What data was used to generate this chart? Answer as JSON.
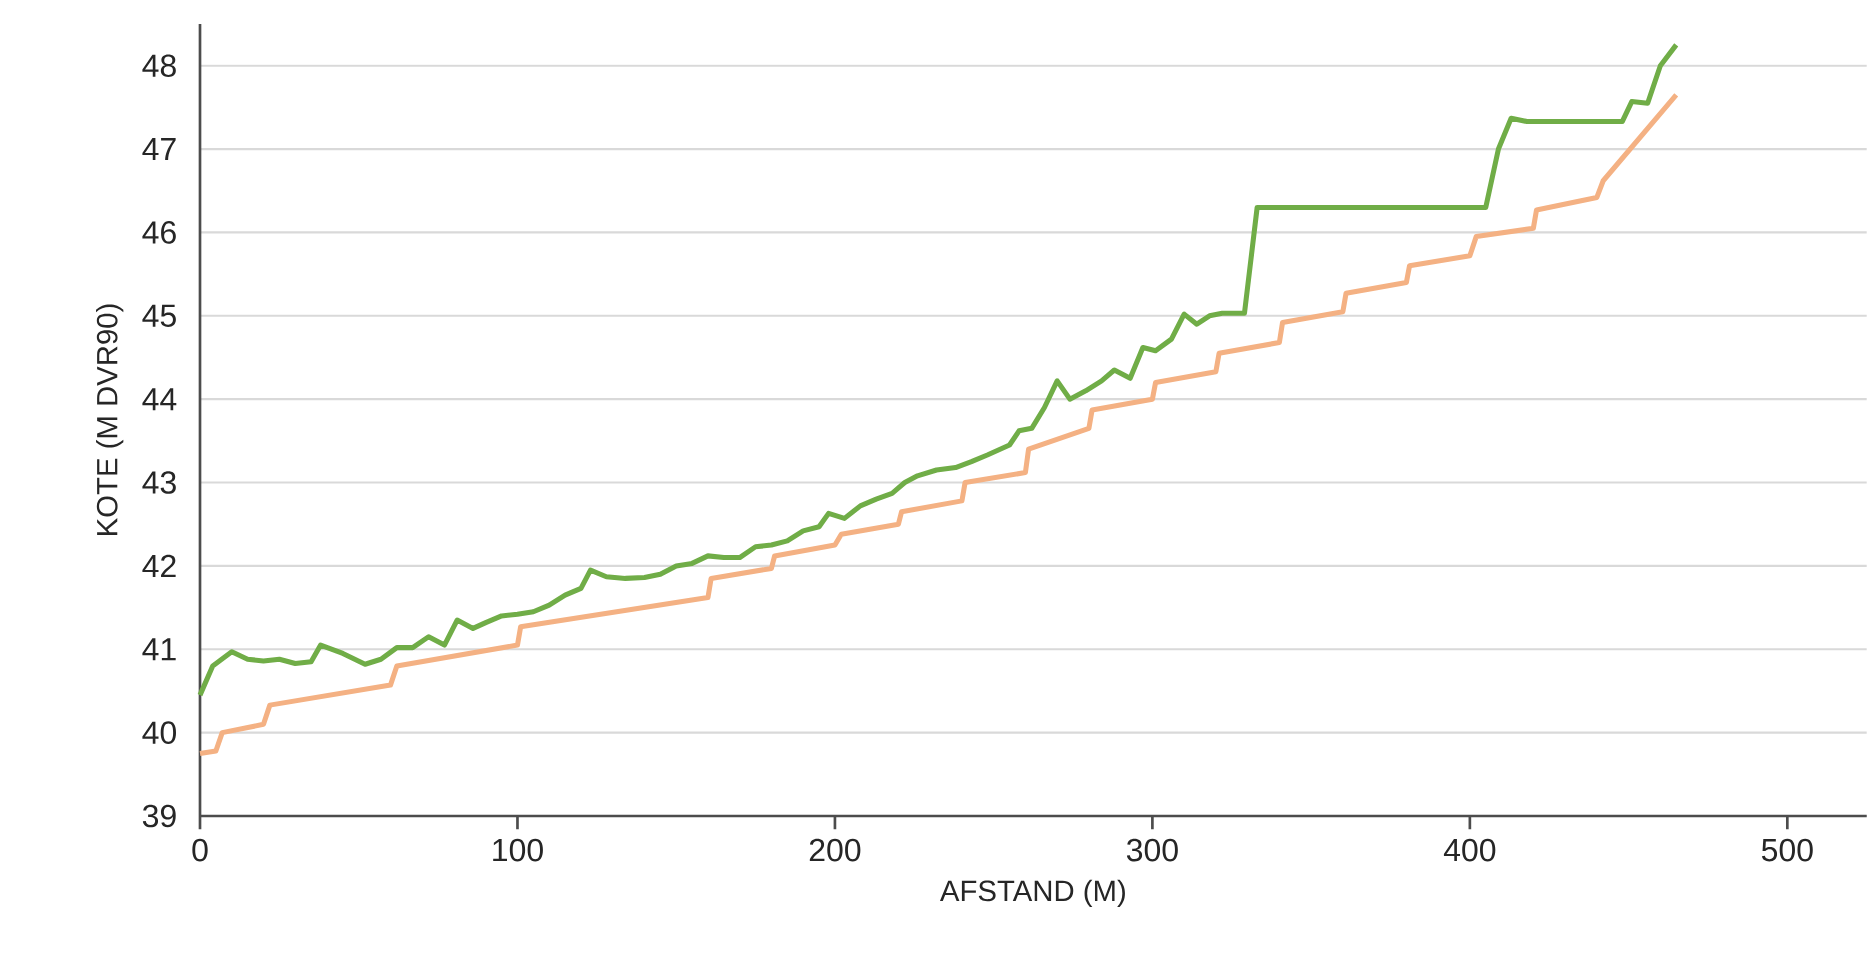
{
  "chart_data": {
    "type": "line",
    "xlabel": "AFSTAND (M)",
    "ylabel": "KOTE (M DVR90)",
    "xlim": [
      0,
      525
    ],
    "xticks": [
      0,
      100,
      200,
      300,
      400,
      500
    ],
    "ylim": [
      39,
      48.5
    ],
    "yticks": [
      39,
      40,
      41,
      42,
      43,
      44,
      45,
      46,
      47,
      48
    ],
    "grid": "y",
    "marker": "none",
    "line_style": "solid",
    "series": [
      {
        "color": "#70ad47",
        "x": [
          0,
          4,
          10,
          15,
          20,
          25,
          30,
          35,
          38,
          45,
          52,
          57,
          62,
          67,
          72,
          77,
          81,
          86,
          90,
          95,
          100,
          105,
          110,
          115,
          120,
          123,
          128,
          134,
          140,
          145,
          150,
          155,
          160,
          165,
          170,
          175,
          180,
          185,
          190,
          195,
          198,
          203,
          208,
          213,
          218,
          222,
          226,
          232,
          238,
          243,
          248,
          255,
          258,
          262,
          266,
          270,
          274,
          279,
          284,
          288,
          293,
          297,
          301,
          306,
          310,
          314,
          318,
          322,
          329,
          333,
          405,
          409,
          413,
          418,
          448,
          451,
          456,
          460,
          465
        ],
        "values": [
          40.45,
          40.8,
          40.97,
          40.88,
          40.86,
          40.88,
          40.83,
          40.85,
          41.05,
          40.95,
          40.82,
          40.88,
          41.02,
          41.02,
          41.15,
          41.05,
          41.35,
          41.25,
          41.32,
          41.4,
          41.42,
          41.45,
          41.53,
          41.65,
          41.73,
          41.95,
          41.87,
          41.85,
          41.86,
          41.9,
          42.0,
          42.03,
          42.12,
          42.1,
          42.1,
          42.23,
          42.25,
          42.3,
          42.42,
          42.47,
          42.63,
          42.57,
          42.72,
          42.8,
          42.87,
          43.0,
          43.08,
          43.15,
          43.18,
          43.25,
          43.33,
          43.45,
          43.62,
          43.65,
          43.9,
          44.22,
          44.0,
          44.1,
          44.22,
          44.35,
          44.25,
          44.62,
          44.58,
          44.72,
          45.02,
          44.9,
          45.0,
          45.03,
          45.03,
          46.3,
          46.3,
          47.0,
          47.37,
          47.33,
          47.33,
          47.57,
          47.55,
          48.0,
          48.25
        ]
      },
      {
        "color": "#f4b183",
        "x": [
          0,
          5,
          7,
          20,
          22,
          60,
          62,
          100,
          101,
          160,
          161,
          180,
          181,
          200,
          202,
          220,
          221,
          240,
          241,
          260,
          261,
          280,
          281,
          300,
          301,
          320,
          321,
          340,
          341,
          360,
          361,
          380,
          381,
          400,
          402,
          420,
          421,
          440,
          442,
          465
        ],
        "values": [
          39.75,
          39.78,
          40.0,
          40.1,
          40.33,
          40.57,
          40.8,
          41.05,
          41.27,
          41.62,
          41.85,
          41.97,
          42.12,
          42.25,
          42.38,
          42.5,
          42.65,
          42.78,
          43.0,
          43.12,
          43.4,
          43.65,
          43.87,
          44.0,
          44.2,
          44.33,
          44.55,
          44.68,
          44.92,
          45.05,
          45.27,
          45.4,
          45.6,
          45.72,
          45.95,
          46.05,
          46.27,
          46.42,
          46.62,
          47.65
        ]
      }
    ]
  }
}
